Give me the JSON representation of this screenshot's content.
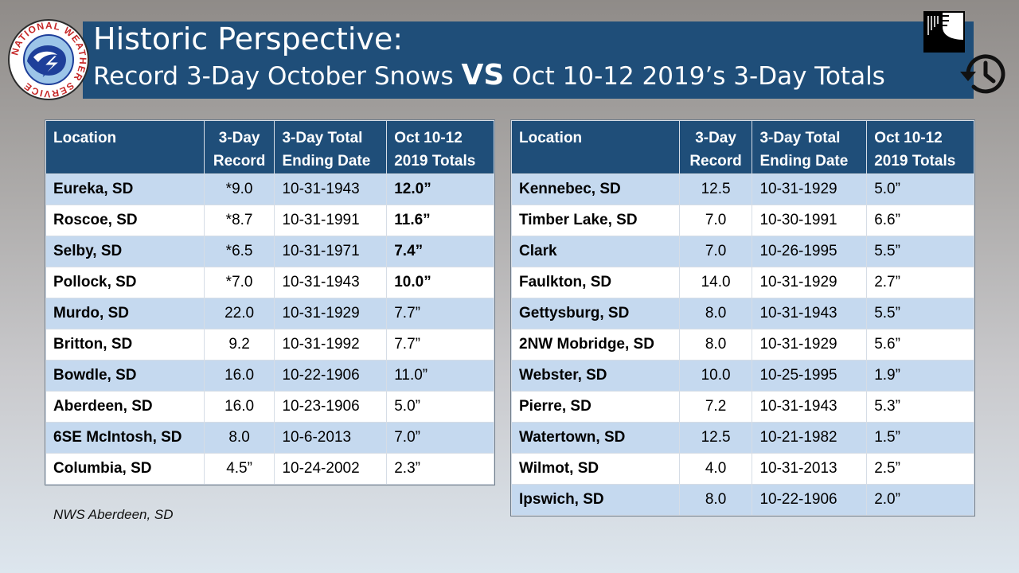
{
  "header": {
    "title_line1": "Historic Perspective:",
    "title_line2_a": "Record 3-Day October Snows ",
    "title_line2_vs": "VS",
    "title_line2_b": " Oct 10-12 2019’s 3-Day Totals",
    "logo_text": "NATIONAL WEATHER SERVICE",
    "icons": [
      "nws-logo",
      "document-page-icon",
      "history-clock-icon"
    ]
  },
  "columns": {
    "location": "Location",
    "record_line1": "3-Day",
    "record_line2": "Record",
    "ending_line1": "3-Day Total",
    "ending_line2": "Ending Date",
    "oct_line1": "Oct 10-12",
    "oct_line2": "2019 Totals"
  },
  "left_table": [
    {
      "location": "Eureka, SD",
      "record": "*9.0",
      "ending_date": "10-31-1943",
      "total_2019": "12.0”",
      "highlight": true
    },
    {
      "location": "Roscoe, SD",
      "record": "*8.7",
      "ending_date": "10-31-1991",
      "total_2019": "11.6”",
      "highlight": true
    },
    {
      "location": "Selby, SD",
      "record": "*6.5",
      "ending_date": "10-31-1971",
      "total_2019": "7.4”",
      "highlight": true
    },
    {
      "location": "Pollock, SD",
      "record": "*7.0",
      "ending_date": "10-31-1943",
      "total_2019": "10.0”",
      "highlight": true
    },
    {
      "location": "Murdo, SD",
      "record": "22.0",
      "ending_date": "10-31-1929",
      "total_2019": "7.7”",
      "highlight": false
    },
    {
      "location": "Britton, SD",
      "record": "9.2",
      "ending_date": "10-31-1992",
      "total_2019": "7.7”",
      "highlight": false
    },
    {
      "location": "Bowdle, SD",
      "record": "16.0",
      "ending_date": "10-22-1906",
      "total_2019": "11.0”",
      "highlight": false
    },
    {
      "location": "Aberdeen, SD",
      "record": "16.0",
      "ending_date": "10-23-1906",
      "total_2019": "5.0”",
      "highlight": false
    },
    {
      "location": "6SE McIntosh, SD",
      "record": "8.0",
      "ending_date": "10-6-2013",
      "total_2019": "7.0”",
      "highlight": false
    },
    {
      "location": "Columbia, SD",
      "record": "4.5”",
      "ending_date": "10-24-2002",
      "total_2019": "2.3”",
      "highlight": false
    }
  ],
  "right_table": [
    {
      "location": "Kennebec, SD",
      "record": "12.5",
      "ending_date": "10-31-1929",
      "total_2019": "5.0”",
      "highlight": false
    },
    {
      "location": "Timber Lake, SD",
      "record": "7.0",
      "ending_date": "10-30-1991",
      "total_2019": "6.6”",
      "highlight": false
    },
    {
      "location": "Clark",
      "record": "7.0",
      "ending_date": "10-26-1995",
      "total_2019": "5.5”",
      "highlight": false
    },
    {
      "location": "Faulkton, SD",
      "record": "14.0",
      "ending_date": "10-31-1929",
      "total_2019": "2.7”",
      "highlight": false
    },
    {
      "location": "Gettysburg, SD",
      "record": "8.0",
      "ending_date": "10-31-1943",
      "total_2019": "5.5”",
      "highlight": false
    },
    {
      "location": "2NW Mobridge, SD",
      "record": "8.0",
      "ending_date": "10-31-1929",
      "total_2019": "5.6”",
      "highlight": false
    },
    {
      "location": "Webster, SD",
      "record": "10.0",
      "ending_date": "10-25-1995",
      "total_2019": "1.9”",
      "highlight": false
    },
    {
      "location": "Pierre, SD",
      "record": "7.2",
      "ending_date": "10-31-1943",
      "total_2019": "5.3”",
      "highlight": false
    },
    {
      "location": "Watertown, SD",
      "record": "12.5",
      "ending_date": "10-21-1982",
      "total_2019": "1.5”",
      "highlight": false
    },
    {
      "location": "Wilmot, SD",
      "record": "4.0",
      "ending_date": "10-31-2013",
      "total_2019": "2.5”",
      "highlight": false
    },
    {
      "location": "Ipswich, SD",
      "record": "8.0",
      "ending_date": "10-22-1906",
      "total_2019": "2.0”",
      "highlight": false
    }
  ],
  "footnote": "NWS Aberdeen, SD",
  "colors": {
    "header_blue": "#1f4e79",
    "row_band": "#c5d9ef",
    "row_white": "#ffffff",
    "logo_ring_text": "#c62828",
    "logo_blue": "#1e3f9a"
  }
}
